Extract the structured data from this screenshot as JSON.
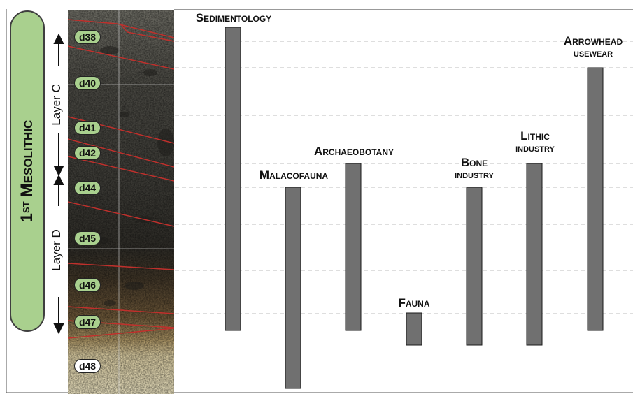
{
  "period": {
    "ordinal": "1",
    "ordinal_suffix": "ST",
    "name": "Mesolithic"
  },
  "layers": [
    {
      "label": "Layer C"
    },
    {
      "label": "Layer D"
    }
  ],
  "samples": [
    {
      "label": "d38",
      "style": "green"
    },
    {
      "label": "d40",
      "style": "green"
    },
    {
      "label": "d41",
      "style": "green"
    },
    {
      "label": "d42",
      "style": "green"
    },
    {
      "label": "d44",
      "style": "green"
    },
    {
      "label": "d45",
      "style": "green"
    },
    {
      "label": "d46",
      "style": "green"
    },
    {
      "label": "d47",
      "style": "green"
    },
    {
      "label": "d48",
      "style": "white"
    }
  ],
  "proxies": [
    {
      "label": "Sedimentology",
      "line2": "",
      "from": "d38",
      "to": "d47"
    },
    {
      "label": "Malacofauna",
      "line2": "",
      "from": "d44",
      "to": "d48"
    },
    {
      "label": "Archaeobotany",
      "line2": "",
      "from": "d42",
      "to": "d47"
    },
    {
      "label": "Fauna",
      "line2": "",
      "from": "d47",
      "to": "d47"
    },
    {
      "label": "Bone",
      "line2": "industry",
      "from": "d44",
      "to": "d47"
    },
    {
      "label": "Lithic",
      "line2": "industry",
      "from": "d42",
      "to": "d47"
    },
    {
      "label": "Arrowhead",
      "line2": "usewear",
      "from": "d40",
      "to": "d47"
    }
  ],
  "colors": {
    "pill_fill": "#a9d08e",
    "bar_fill": "#707070",
    "bar_stroke": "#1a1a1a",
    "boundary_line": "#c0302c",
    "guide_line": "#bdbdbd"
  }
}
